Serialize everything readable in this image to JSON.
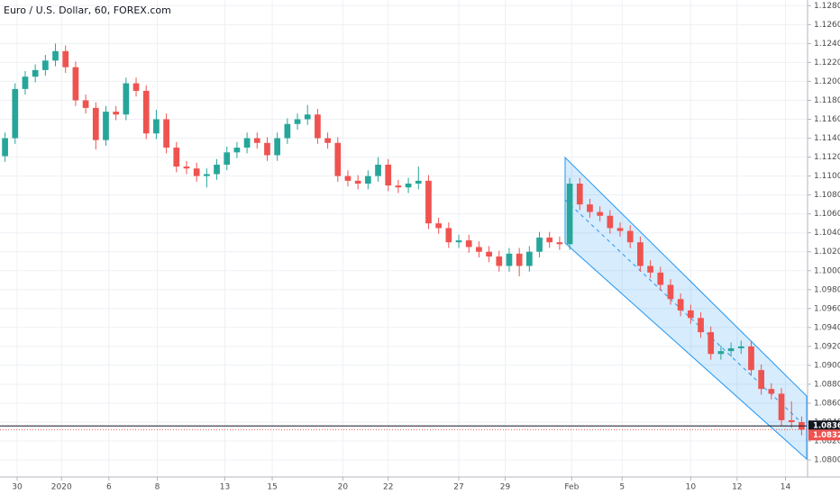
{
  "chart_data": {
    "type": "candlestick",
    "title": "Euro / U.S. Dollar, 60, FOREX.com",
    "up_color": "#26a69a",
    "down_color": "#ef5350",
    "grid": true,
    "xlim": [
      0,
      80
    ],
    "xticks": [
      {
        "value": 1.7,
        "label": "30"
      },
      {
        "value": 6.1,
        "label": "2020"
      },
      {
        "value": 10.8,
        "label": "6"
      },
      {
        "value": 15.6,
        "label": "8"
      },
      {
        "value": 22.3,
        "label": "13"
      },
      {
        "value": 27.0,
        "label": "15"
      },
      {
        "value": 34.0,
        "label": "20"
      },
      {
        "value": 38.5,
        "label": "22"
      },
      {
        "value": 45.5,
        "label": "27"
      },
      {
        "value": 50.1,
        "label": "29"
      },
      {
        "value": 56.7,
        "label": "Feb"
      },
      {
        "value": 61.7,
        "label": "5"
      },
      {
        "value": 68.5,
        "label": "10"
      },
      {
        "value": 73.1,
        "label": "12"
      },
      {
        "value": 77.9,
        "label": "14"
      }
    ],
    "ylim": [
      1.0782,
      1.1286
    ],
    "yticks": [
      {
        "value": 1.08,
        "label": "1.08000"
      },
      {
        "value": 1.082,
        "label": "1.08200"
      },
      {
        "value": 1.084,
        "label": "1.08400"
      },
      {
        "value": 1.086,
        "label": "1.08600"
      },
      {
        "value": 1.088,
        "label": "1.08800"
      },
      {
        "value": 1.09,
        "label": "1.09000"
      },
      {
        "value": 1.092,
        "label": "1.09200"
      },
      {
        "value": 1.094,
        "label": "1.09400"
      },
      {
        "value": 1.096,
        "label": "1.09600"
      },
      {
        "value": 1.098,
        "label": "1.09800"
      },
      {
        "value": 1.1,
        "label": "1.10000"
      },
      {
        "value": 1.102,
        "label": "1.10200"
      },
      {
        "value": 1.104,
        "label": "1.10400"
      },
      {
        "value": 1.106,
        "label": "1.10600"
      },
      {
        "value": 1.108,
        "label": "1.10800"
      },
      {
        "value": 1.11,
        "label": "1.11000"
      },
      {
        "value": 1.112,
        "label": "1.11200"
      },
      {
        "value": 1.114,
        "label": "1.11400"
      },
      {
        "value": 1.116,
        "label": "1.11600"
      },
      {
        "value": 1.118,
        "label": "1.11800"
      },
      {
        "value": 1.12,
        "label": "1.12000"
      },
      {
        "value": 1.122,
        "label": "1.12200"
      },
      {
        "value": 1.124,
        "label": "1.12400"
      },
      {
        "value": 1.126,
        "label": "1.12600"
      },
      {
        "value": 1.128,
        "label": "1.12800"
      }
    ],
    "price_lines": [
      {
        "value": 1.0836,
        "label": "1.08360",
        "color": "#131722"
      },
      {
        "value": 1.08321,
        "label": "1.08321",
        "color": "#ef5350"
      }
    ],
    "open": [
      1.1121,
      1.114,
      1.1192,
      1.1205,
      1.1212,
      1.1222,
      1.1232,
      1.1215,
      1.118,
      1.1172,
      1.1138,
      1.1168,
      1.1165,
      1.1198,
      1.119,
      1.1145,
      1.116,
      1.113,
      1.111,
      1.1108,
      1.11,
      1.1102,
      1.1112,
      1.1125,
      1.113,
      1.114,
      1.1135,
      1.1122,
      1.114,
      1.1155,
      1.116,
      1.1165,
      1.114,
      1.1135,
      1.11,
      1.1095,
      1.1092,
      1.11,
      1.1112,
      1.109,
      1.1088,
      1.1092,
      1.1095,
      1.105,
      1.1045,
      1.103,
      1.1032,
      1.1025,
      1.102,
      1.1015,
      1.1005,
      1.1018,
      1.1005,
      1.102,
      1.1035,
      1.103,
      1.1028,
      1.1092,
      1.107,
      1.1062,
      1.1058,
      1.1045,
      1.1042,
      1.103,
      1.1005,
      1.0998,
      1.0985,
      1.097,
      1.0958,
      1.095,
      1.0935,
      1.0912,
      1.0915,
      1.0918,
      1.092,
      1.0895,
      1.0875,
      1.087,
      1.0842,
      1.084
    ],
    "high": [
      1.1146,
      1.1198,
      1.1211,
      1.1218,
      1.1228,
      1.124,
      1.1238,
      1.1221,
      1.1186,
      1.1178,
      1.1174,
      1.1174,
      1.1204,
      1.1204,
      1.1196,
      1.117,
      1.1166,
      1.1136,
      1.1116,
      1.1114,
      1.1108,
      1.1118,
      1.1131,
      1.1136,
      1.1146,
      1.1146,
      1.1141,
      1.1146,
      1.1161,
      1.1166,
      1.1175,
      1.1171,
      1.1146,
      1.1141,
      1.1106,
      1.1101,
      1.1106,
      1.112,
      1.1118,
      1.1096,
      1.1098,
      1.111,
      1.1101,
      1.1056,
      1.1051,
      1.1038,
      1.1038,
      1.1031,
      1.1026,
      1.1021,
      1.1024,
      1.1024,
      1.1026,
      1.1041,
      1.1041,
      1.1036,
      1.1098,
      1.1098,
      1.1076,
      1.1068,
      1.1064,
      1.1051,
      1.1048,
      1.1036,
      1.1011,
      1.1004,
      1.0991,
      1.0976,
      1.0964,
      1.0956,
      1.0941,
      1.0921,
      1.0924,
      1.0926,
      1.0926,
      1.0901,
      1.0881,
      1.0876,
      1.0862,
      1.0846
    ],
    "low": [
      1.1115,
      1.1134,
      1.1186,
      1.1199,
      1.1206,
      1.1216,
      1.1209,
      1.1174,
      1.1166,
      1.1128,
      1.1132,
      1.1159,
      1.1159,
      1.1184,
      1.1139,
      1.1139,
      1.1124,
      1.1104,
      1.1102,
      1.1094,
      1.1088,
      1.1096,
      1.1106,
      1.1119,
      1.1124,
      1.1129,
      1.1116,
      1.1116,
      1.1134,
      1.1149,
      1.1154,
      1.1134,
      1.1129,
      1.1094,
      1.1089,
      1.1086,
      1.1086,
      1.1094,
      1.1084,
      1.1082,
      1.1082,
      1.1086,
      1.1044,
      1.1039,
      1.1024,
      1.1024,
      1.1019,
      1.1014,
      1.1009,
      1.0999,
      1.0999,
      1.0994,
      1.0999,
      1.1014,
      1.1024,
      1.1022,
      1.1022,
      1.1064,
      1.1056,
      1.1052,
      1.1039,
      1.1036,
      1.1024,
      1.0999,
      1.0992,
      1.0979,
      1.0964,
      1.0952,
      1.0944,
      1.0929,
      1.0906,
      1.0906,
      1.0909,
      1.0912,
      1.0889,
      1.0869,
      1.0864,
      1.0836,
      1.0834,
      1.0826
    ],
    "close": [
      1.114,
      1.1192,
      1.1205,
      1.1212,
      1.1222,
      1.1232,
      1.1215,
      1.118,
      1.1172,
      1.1138,
      1.1168,
      1.1165,
      1.1198,
      1.119,
      1.1145,
      1.116,
      1.113,
      1.111,
      1.1108,
      1.11,
      1.1102,
      1.1112,
      1.1125,
      1.113,
      1.114,
      1.1135,
      1.1122,
      1.114,
      1.1155,
      1.116,
      1.1165,
      1.114,
      1.1135,
      1.11,
      1.1095,
      1.1092,
      1.11,
      1.1112,
      1.109,
      1.1088,
      1.1092,
      1.1095,
      1.105,
      1.1045,
      1.103,
      1.1032,
      1.1025,
      1.102,
      1.1015,
      1.1005,
      1.1018,
      1.1005,
      1.102,
      1.1035,
      1.103,
      1.1028,
      1.1092,
      1.107,
      1.1062,
      1.1058,
      1.1045,
      1.1042,
      1.103,
      1.1005,
      1.0998,
      1.0985,
      1.097,
      1.0958,
      1.095,
      1.0935,
      1.0912,
      1.0915,
      1.0918,
      1.092,
      1.0895,
      1.0875,
      1.087,
      1.0842,
      1.084,
      1.08321
    ]
  }
}
